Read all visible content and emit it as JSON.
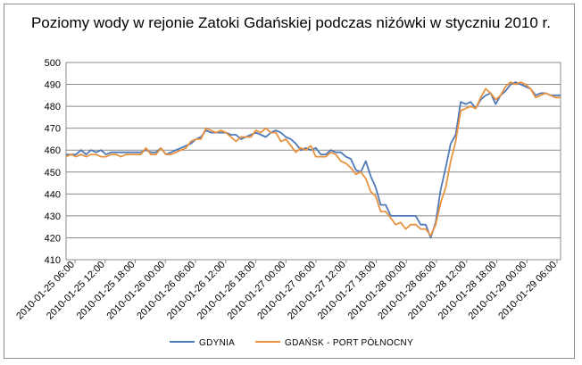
{
  "chart_data": {
    "type": "line",
    "title": "Poziomy wody w rejonie Zatoki Gdańskiej podczas niżówki w styczniu 2010 r.",
    "xlabel": "",
    "ylabel": "",
    "ylim": [
      410,
      500
    ],
    "yticks": [
      410,
      420,
      430,
      440,
      450,
      460,
      470,
      480,
      490,
      500
    ],
    "grid": true,
    "legend": "bottom",
    "x_start": "2010-01-25 06:00",
    "x_step_hours": 1,
    "xticks": [
      "2010-01-25 06:00",
      "2010-01-25 12:00",
      "2010-01-25 18:00",
      "2010-01-26 00:00",
      "2010-01-26 06:00",
      "2010-01-26 12:00",
      "2010-01-26 18:00",
      "2010-01-27 00:00",
      "2010-01-27 06:00",
      "2010-01-27 12:00",
      "2010-01-27 18:00",
      "2010-01-28 00:00",
      "2010-01-28 06:00",
      "2010-01-28 12:00",
      "2010-01-28 18:00",
      "2010-01-29 00:00",
      "2010-01-29 06:00"
    ],
    "series": [
      {
        "name": "GDYNIA",
        "color": "#4f79b8",
        "values": [
          458,
          458,
          458,
          460,
          458,
          460,
          459,
          460,
          458,
          459,
          459,
          459,
          459,
          459,
          459,
          459,
          460,
          459,
          459,
          461,
          458,
          459,
          460,
          461,
          462,
          463,
          465,
          466,
          469,
          468,
          468,
          468,
          468,
          467,
          467,
          465,
          466,
          467,
          468,
          467,
          466,
          468,
          469,
          468,
          466,
          465,
          463,
          460,
          461,
          460,
          461,
          458,
          458,
          460,
          459,
          459,
          457,
          456,
          451,
          450,
          455,
          448,
          443,
          435,
          435,
          430,
          430,
          430,
          430,
          430,
          430,
          426,
          426,
          420,
          427,
          442,
          452,
          463,
          467,
          482,
          481,
          482,
          479,
          483,
          485,
          486,
          481,
          485,
          487,
          490,
          491,
          490,
          489,
          488,
          485,
          486,
          486,
          485,
          485,
          485
        ]
      },
      {
        "name": "GDAŃSK - PORT PÓŁNOCNY",
        "color": "#e8923f",
        "values": [
          457,
          458,
          457,
          458,
          457,
          458,
          458,
          457,
          457,
          458,
          458,
          457,
          458,
          458,
          458,
          458,
          461,
          458,
          458,
          461,
          458,
          458,
          459,
          460,
          461,
          464,
          465,
          465,
          470,
          469,
          468,
          469,
          468,
          466,
          464,
          466,
          466,
          466,
          469,
          468,
          470,
          468,
          468,
          464,
          465,
          462,
          459,
          461,
          460,
          462,
          457,
          457,
          457,
          459,
          458,
          455,
          454,
          452,
          449,
          450,
          447,
          441,
          439,
          432,
          432,
          429,
          426,
          427,
          424,
          426,
          426,
          424,
          424,
          421,
          426,
          436,
          443,
          455,
          464,
          478,
          479,
          480,
          479,
          484,
          488,
          486,
          483,
          485,
          489,
          491,
          490,
          491,
          490,
          488,
          484,
          485,
          486,
          485,
          484,
          484
        ]
      }
    ]
  }
}
